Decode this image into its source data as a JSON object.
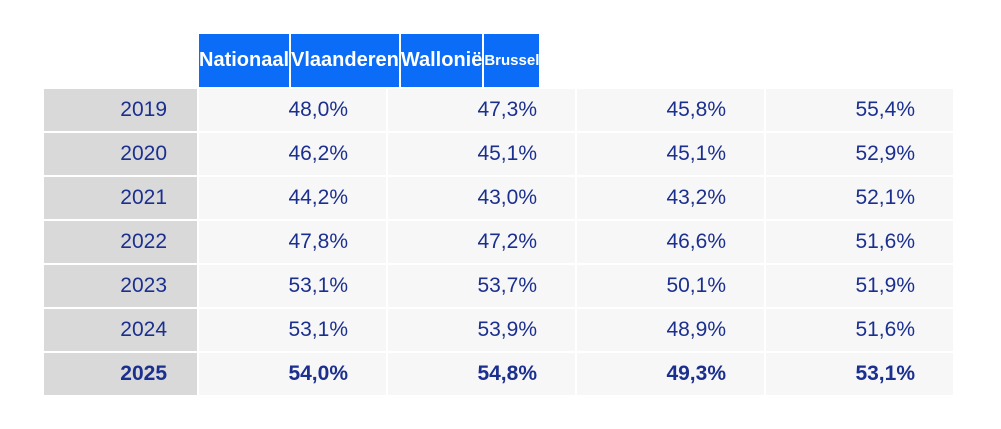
{
  "chart_data": {
    "type": "table",
    "columns": [
      "Nationaal",
      "Vlaanderen",
      "Wallonië",
      "Brussel"
    ],
    "rows": [
      {
        "year": "2019",
        "values": [
          "48,0%",
          "47,3%",
          "45,8%",
          "55,4%"
        ]
      },
      {
        "year": "2020",
        "values": [
          "46,2%",
          "45,1%",
          "45,1%",
          "52,9%"
        ]
      },
      {
        "year": "2021",
        "values": [
          "44,2%",
          "43,0%",
          "43,2%",
          "52,1%"
        ]
      },
      {
        "year": "2022",
        "values": [
          "47,8%",
          "47,2%",
          "46,6%",
          "51,6%"
        ]
      },
      {
        "year": "2023",
        "values": [
          "53,1%",
          "53,7%",
          "50,1%",
          "51,9%"
        ]
      },
      {
        "year": "2024",
        "values": [
          "53,1%",
          "53,9%",
          "48,9%",
          "51,6%"
        ]
      },
      {
        "year": "2025",
        "values": [
          "54,0%",
          "54,8%",
          "49,3%",
          "53,1%"
        ],
        "highlight": true
      }
    ]
  },
  "colors": {
    "header_bg": "#0a6cf7",
    "header_text": "#ffffff",
    "year_bg": "#d9d9d9",
    "cell_bg": "#f7f7f7",
    "text": "#1b2f8f"
  }
}
